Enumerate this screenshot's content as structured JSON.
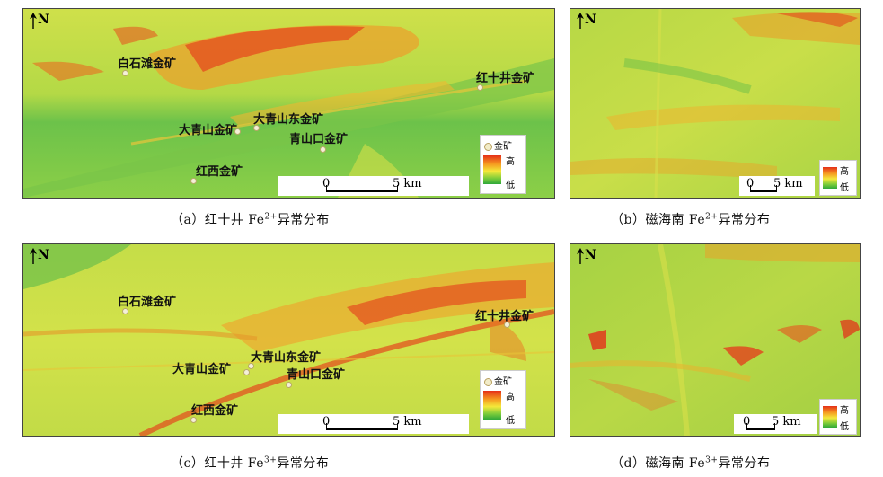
{
  "north_label": "N",
  "legend": {
    "gold_label": "金矿",
    "high": "高",
    "low": "低"
  },
  "scale": {
    "zero": "0",
    "five_km": "5 km"
  },
  "panels": {
    "a": {
      "sites": [
        "白石滩金矿",
        "红十井金矿",
        "大青山东金矿",
        "大青山金矿",
        "青山口金矿",
        "红西金矿"
      ],
      "caption": {
        "prefix": "（a）红十井 Fe",
        "sup": "2+",
        "suffix": "异常分布"
      }
    },
    "b": {
      "caption": {
        "prefix": "（b）磁海南 Fe",
        "sup": "2+",
        "suffix": "异常分布"
      }
    },
    "c": {
      "sites": [
        "白石滩金矿",
        "红十井金矿",
        "大青山东金矿",
        "大青山金矿",
        "青山口金矿",
        "红西金矿"
      ],
      "caption": {
        "prefix": "（c）红十井 Fe",
        "sup": "3+",
        "suffix": "异常分布"
      }
    },
    "d": {
      "caption": {
        "prefix": "（d）磁海南 Fe",
        "sup": "3+",
        "suffix": "异常分布"
      }
    }
  },
  "colors": {
    "high": "#e53018",
    "mid": "#f4e83a",
    "low": "#2fa83a"
  }
}
